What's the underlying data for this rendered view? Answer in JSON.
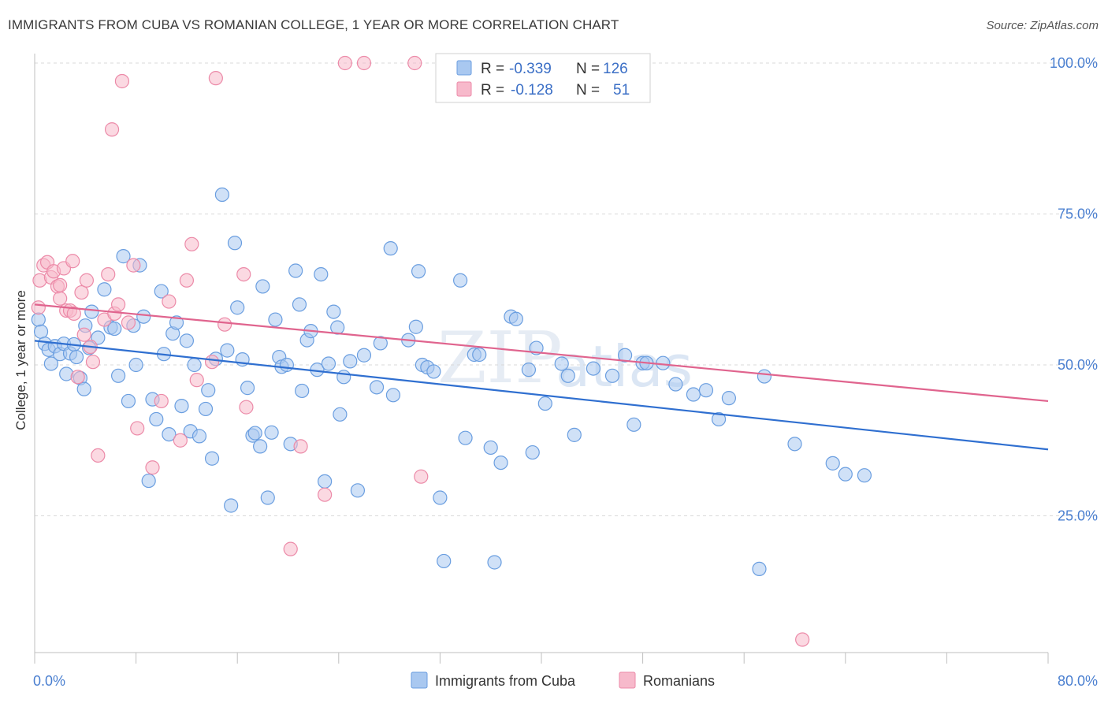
{
  "header": {
    "title": "IMMIGRANTS FROM CUBA VS ROMANIAN COLLEGE, 1 YEAR OR MORE CORRELATION CHART",
    "source": "Source: ZipAtlas.com"
  },
  "watermark": {
    "part1": "ZIP",
    "part2": "atlas"
  },
  "stats_box": {
    "rows": [
      {
        "r_label": "R =",
        "r_value": "-0.339",
        "n_label": "N =",
        "n_value": "126",
        "color": "#a9c8f0",
        "stroke": "#6a9ee0"
      },
      {
        "r_label": "R =",
        "r_value": "-0.128",
        "n_label": "N =",
        "n_value": "51",
        "color": "#f7b9cb",
        "stroke": "#ec8aa8"
      }
    ]
  },
  "legend": {
    "items": [
      {
        "label": "Immigrants from Cuba",
        "color": "#a9c8f0",
        "stroke": "#6a9ee0"
      },
      {
        "label": "Romanians",
        "color": "#f7b9cb",
        "stroke": "#ec8aa8"
      }
    ]
  },
  "chart_data": {
    "type": "scatter",
    "title": "IMMIGRANTS FROM CUBA VS ROMANIAN COLLEGE, 1 YEAR OR MORE CORRELATION CHART",
    "xlabel": "",
    "ylabel": "College, 1 year or more",
    "xlim": [
      0,
      80
    ],
    "ylim": [
      0,
      105
    ],
    "x_tick_labels": [
      {
        "value": 0,
        "label": "0.0%"
      },
      {
        "value": 80,
        "label": "80.0%"
      }
    ],
    "y_tick_labels": [
      {
        "value": 100,
        "label": "100.0%"
      },
      {
        "value": 75,
        "label": "75.0%"
      },
      {
        "value": 50,
        "label": "50.0%"
      },
      {
        "value": 25,
        "label": "25.0%"
      }
    ],
    "y_gridlines": [
      100,
      75,
      50,
      25
    ],
    "grid": "horizontal dashed",
    "legend_position": "bottom-center",
    "series": [
      {
        "name": "Immigrants from Cuba",
        "color": "#a9c8f0",
        "stroke": "#6a9ee0",
        "trend_color": "#2f6fd0",
        "trend": {
          "x": [
            0,
            80
          ],
          "y": [
            54.0,
            36.0
          ]
        },
        "points": [
          [
            0.3,
            57.5
          ],
          [
            0.5,
            55.5
          ],
          [
            0.8,
            53.5
          ],
          [
            1.1,
            52.5
          ],
          [
            1.3,
            50.2
          ],
          [
            1.6,
            53.1
          ],
          [
            2.0,
            51.8
          ],
          [
            2.3,
            53.5
          ],
          [
            2.5,
            48.5
          ],
          [
            2.8,
            51.9
          ],
          [
            3.1,
            53.4
          ],
          [
            3.3,
            51.3
          ],
          [
            3.6,
            47.8
          ],
          [
            3.9,
            46.0
          ],
          [
            4.0,
            56.5
          ],
          [
            4.3,
            52.8
          ],
          [
            4.5,
            58.8
          ],
          [
            5.0,
            54.5
          ],
          [
            5.5,
            62.5
          ],
          [
            6.0,
            56.2
          ],
          [
            6.3,
            56.0
          ],
          [
            6.6,
            48.2
          ],
          [
            7.0,
            68.0
          ],
          [
            7.4,
            44.0
          ],
          [
            7.8,
            56.5
          ],
          [
            8.0,
            50.0
          ],
          [
            8.3,
            66.5
          ],
          [
            8.6,
            58.0
          ],
          [
            9.0,
            30.8
          ],
          [
            9.3,
            44.3
          ],
          [
            9.6,
            41.0
          ],
          [
            10.0,
            62.2
          ],
          [
            10.2,
            51.8
          ],
          [
            10.6,
            38.5
          ],
          [
            10.9,
            55.2
          ],
          [
            11.2,
            57.0
          ],
          [
            11.6,
            43.2
          ],
          [
            12.0,
            54.0
          ],
          [
            12.3,
            39.0
          ],
          [
            12.6,
            50.0
          ],
          [
            13.0,
            38.2
          ],
          [
            13.5,
            42.7
          ],
          [
            13.7,
            45.8
          ],
          [
            14.0,
            34.5
          ],
          [
            14.3,
            51.0
          ],
          [
            14.8,
            78.2
          ],
          [
            15.2,
            52.4
          ],
          [
            15.5,
            26.7
          ],
          [
            15.8,
            70.2
          ],
          [
            16.0,
            59.5
          ],
          [
            16.4,
            50.9
          ],
          [
            16.8,
            46.2
          ],
          [
            17.2,
            38.3
          ],
          [
            17.4,
            38.7
          ],
          [
            17.8,
            36.5
          ],
          [
            18.0,
            63.0
          ],
          [
            18.4,
            28.0
          ],
          [
            18.7,
            38.8
          ],
          [
            19.0,
            57.5
          ],
          [
            19.3,
            51.3
          ],
          [
            19.5,
            49.7
          ],
          [
            19.9,
            50.0
          ],
          [
            20.2,
            36.9
          ],
          [
            20.6,
            65.6
          ],
          [
            20.9,
            60.0
          ],
          [
            21.1,
            45.7
          ],
          [
            21.5,
            54.1
          ],
          [
            21.8,
            55.6
          ],
          [
            22.3,
            49.2
          ],
          [
            22.6,
            65.0
          ],
          [
            22.9,
            30.7
          ],
          [
            23.2,
            50.2
          ],
          [
            23.6,
            58.8
          ],
          [
            23.9,
            56.2
          ],
          [
            24.1,
            41.8
          ],
          [
            24.4,
            48.0
          ],
          [
            24.9,
            50.6
          ],
          [
            25.5,
            29.2
          ],
          [
            26.0,
            51.6
          ],
          [
            27.0,
            46.3
          ],
          [
            27.3,
            53.6
          ],
          [
            28.1,
            69.3
          ],
          [
            28.3,
            45.0
          ],
          [
            29.5,
            54.1
          ],
          [
            30.1,
            56.3
          ],
          [
            30.3,
            65.5
          ],
          [
            30.6,
            50.0
          ],
          [
            31.0,
            49.6
          ],
          [
            31.5,
            48.9
          ],
          [
            32.0,
            28.0
          ],
          [
            32.3,
            17.5
          ],
          [
            33.6,
            64.0
          ],
          [
            34.0,
            37.9
          ],
          [
            34.7,
            51.7
          ],
          [
            35.1,
            51.7
          ],
          [
            36.0,
            36.3
          ],
          [
            36.3,
            17.3
          ],
          [
            36.8,
            33.8
          ],
          [
            37.6,
            58.0
          ],
          [
            38.0,
            57.6
          ],
          [
            39.0,
            49.2
          ],
          [
            39.3,
            35.5
          ],
          [
            39.6,
            52.8
          ],
          [
            40.3,
            43.6
          ],
          [
            41.6,
            50.2
          ],
          [
            42.1,
            48.2
          ],
          [
            42.6,
            38.4
          ],
          [
            44.1,
            49.4
          ],
          [
            45.6,
            48.2
          ],
          [
            46.6,
            51.6
          ],
          [
            47.3,
            40.1
          ],
          [
            48.0,
            50.3
          ],
          [
            48.3,
            50.3
          ],
          [
            49.6,
            50.3
          ],
          [
            50.6,
            46.8
          ],
          [
            52.0,
            45.1
          ],
          [
            53.0,
            45.8
          ],
          [
            54.0,
            41.0
          ],
          [
            54.8,
            44.5
          ],
          [
            57.2,
            16.2
          ],
          [
            57.6,
            48.1
          ],
          [
            60.0,
            36.9
          ],
          [
            63.0,
            33.7
          ],
          [
            64.0,
            31.9
          ],
          [
            65.5,
            31.7
          ]
        ]
      },
      {
        "name": "Romanians",
        "color": "#f7b9cb",
        "stroke": "#ec8aa8",
        "trend_color": "#e0648e",
        "trend": {
          "x": [
            0,
            80
          ],
          "y": [
            60.0,
            44.0
          ]
        },
        "points": [
          [
            0.3,
            59.5
          ],
          [
            0.4,
            64.0
          ],
          [
            0.7,
            66.5
          ],
          [
            1.0,
            67.0
          ],
          [
            1.3,
            64.5
          ],
          [
            1.5,
            65.5
          ],
          [
            1.8,
            63.0
          ],
          [
            2.0,
            61.0
          ],
          [
            2.3,
            66.0
          ],
          [
            2.5,
            59.0
          ],
          [
            2.8,
            59.0
          ],
          [
            3.1,
            58.5
          ],
          [
            3.4,
            48.0
          ],
          [
            3.7,
            62.0
          ],
          [
            3.9,
            55.0
          ],
          [
            4.1,
            64.0
          ],
          [
            4.4,
            53.0
          ],
          [
            4.6,
            50.5
          ],
          [
            5.0,
            35.0
          ],
          [
            5.5,
            57.5
          ],
          [
            5.8,
            65.0
          ],
          [
            6.1,
            89.0
          ],
          [
            6.3,
            58.5
          ],
          [
            6.6,
            60.0
          ],
          [
            6.9,
            97.0
          ],
          [
            7.4,
            57.0
          ],
          [
            7.8,
            66.5
          ],
          [
            8.1,
            39.5
          ],
          [
            9.3,
            33.0
          ],
          [
            10.0,
            44.0
          ],
          [
            10.6,
            60.5
          ],
          [
            11.5,
            37.5
          ],
          [
            12.0,
            64.0
          ],
          [
            12.4,
            70.0
          ],
          [
            12.8,
            47.5
          ],
          [
            14.0,
            50.5
          ],
          [
            14.3,
            97.5
          ],
          [
            15.0,
            56.7
          ],
          [
            16.5,
            65.0
          ],
          [
            16.7,
            43.0
          ],
          [
            20.2,
            19.5
          ],
          [
            21.0,
            36.5
          ],
          [
            22.9,
            28.5
          ],
          [
            24.5,
            100.0
          ],
          [
            26.0,
            100.0
          ],
          [
            30.0,
            100.0
          ],
          [
            30.5,
            31.5
          ],
          [
            40.6,
            100.0
          ],
          [
            60.6,
            4.5
          ],
          [
            2.0,
            63.2
          ],
          [
            3.0,
            67.2
          ]
        ]
      }
    ]
  }
}
